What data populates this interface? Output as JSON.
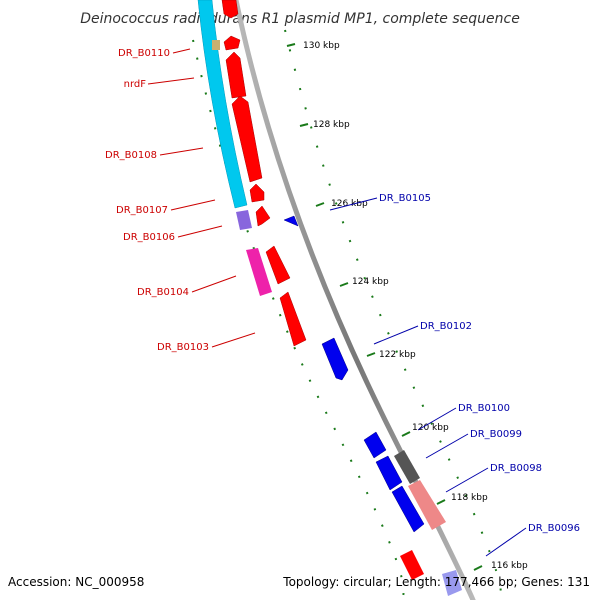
{
  "title": "Deinococcus radiodurans R1 plasmid MP1, complete sequence",
  "footer": {
    "accession": "Accession: NC_000958",
    "summary": "Topology: circular; Length: 177,466 bp; Genes: 131"
  },
  "colors": {
    "backbone": "#888888",
    "tick": "#1a7a1a",
    "forward_label": "#cc0000",
    "reverse_label": "#0000aa",
    "red_gene": "#ff0000",
    "blue_gene": "#0000ee",
    "cyan_gene": "#00c8ee",
    "magenta_gene": "#ee22aa",
    "purple_gene": "#8866dd",
    "grey_gene": "#555555",
    "pink_gene": "#ee8888",
    "tan_gene": "#c8b070",
    "light_blue_gene": "#9999ee"
  },
  "kbp_labels": [
    "130 kbp",
    "128 kbp",
    "126 kbp",
    "124 kbp",
    "122 kbp",
    "120 kbp",
    "118 kbp",
    "116 kbp"
  ],
  "gene_labels_forward": [
    "DR_B0110",
    "nrdF",
    "DR_B0108",
    "DR_B0107",
    "DR_B0106",
    "DR_B0104",
    "DR_B0103"
  ],
  "gene_labels_reverse": [
    "DR_B0105",
    "DR_B0102",
    "DR_B0100",
    "DR_B0099",
    "DR_B0098",
    "DR_B0096"
  ]
}
